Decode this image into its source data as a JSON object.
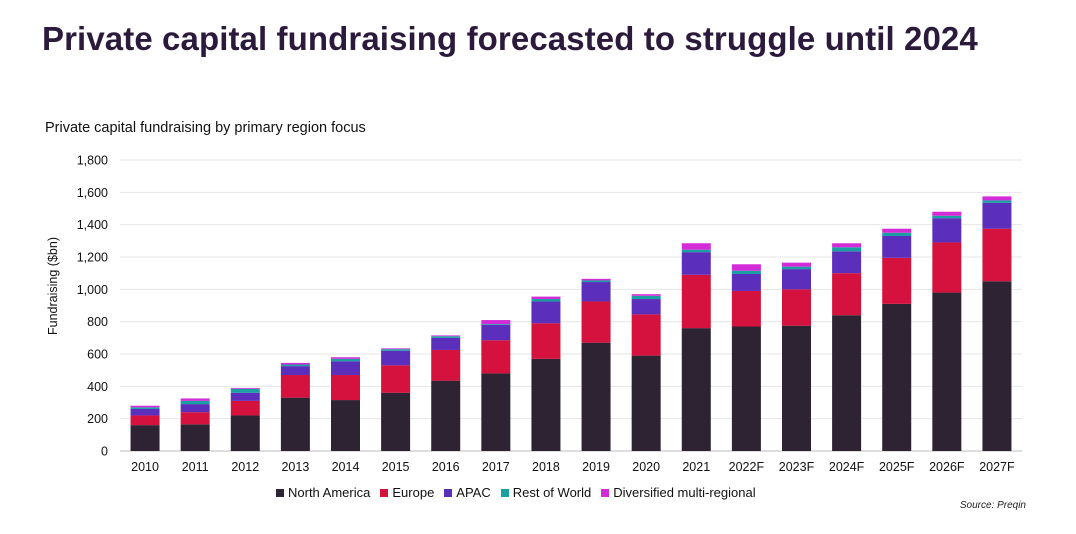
{
  "page": {
    "headline": "Private capital fundraising forecasted to struggle until 2024",
    "source": "Source: Preqin"
  },
  "chart_data": {
    "type": "bar",
    "stacked": true,
    "title": "Private capital fundraising by primary region focus",
    "xlabel": "",
    "ylabel": "Fundraising ($bn)",
    "ylim": [
      0,
      1800
    ],
    "yticks": [
      0,
      200,
      400,
      600,
      800,
      1000,
      1200,
      1400,
      1600,
      1800
    ],
    "ytick_labels": [
      "0",
      "200",
      "400",
      "600",
      "800",
      "1,000",
      "1,200",
      "1,400",
      "1,600",
      "1,800"
    ],
    "grid": true,
    "legend_position": "bottom",
    "categories": [
      "2010",
      "2011",
      "2012",
      "2013",
      "2014",
      "2015",
      "2016",
      "2017",
      "2018",
      "2019",
      "2020",
      "2021",
      "2022F",
      "2023F",
      "2024F",
      "2025F",
      "2026F",
      "2027F"
    ],
    "series": [
      {
        "name": "North America",
        "color": "#2e2333",
        "values": [
          160,
          165,
          220,
          330,
          315,
          360,
          435,
          480,
          570,
          670,
          590,
          760,
          770,
          775,
          840,
          910,
          980,
          1050
        ]
      },
      {
        "name": "Europe",
        "color": "#d5113d",
        "values": [
          60,
          75,
          90,
          140,
          155,
          170,
          190,
          205,
          220,
          255,
          255,
          330,
          220,
          225,
          260,
          285,
          310,
          325
        ]
      },
      {
        "name": "APAC",
        "color": "#5b2ebc",
        "values": [
          40,
          50,
          50,
          55,
          85,
          90,
          75,
          95,
          135,
          120,
          95,
          140,
          105,
          125,
          135,
          135,
          150,
          160
        ]
      },
      {
        "name": "Rest of World",
        "color": "#1a9fa3",
        "values": [
          10,
          20,
          25,
          10,
          15,
          10,
          10,
          5,
          15,
          10,
          20,
          15,
          20,
          15,
          25,
          20,
          15,
          15
        ]
      },
      {
        "name": "Diversified multi-regional",
        "color": "#d42bd8",
        "values": [
          10,
          15,
          5,
          10,
          10,
          5,
          5,
          25,
          15,
          10,
          10,
          40,
          40,
          25,
          25,
          25,
          25,
          25
        ]
      }
    ]
  }
}
